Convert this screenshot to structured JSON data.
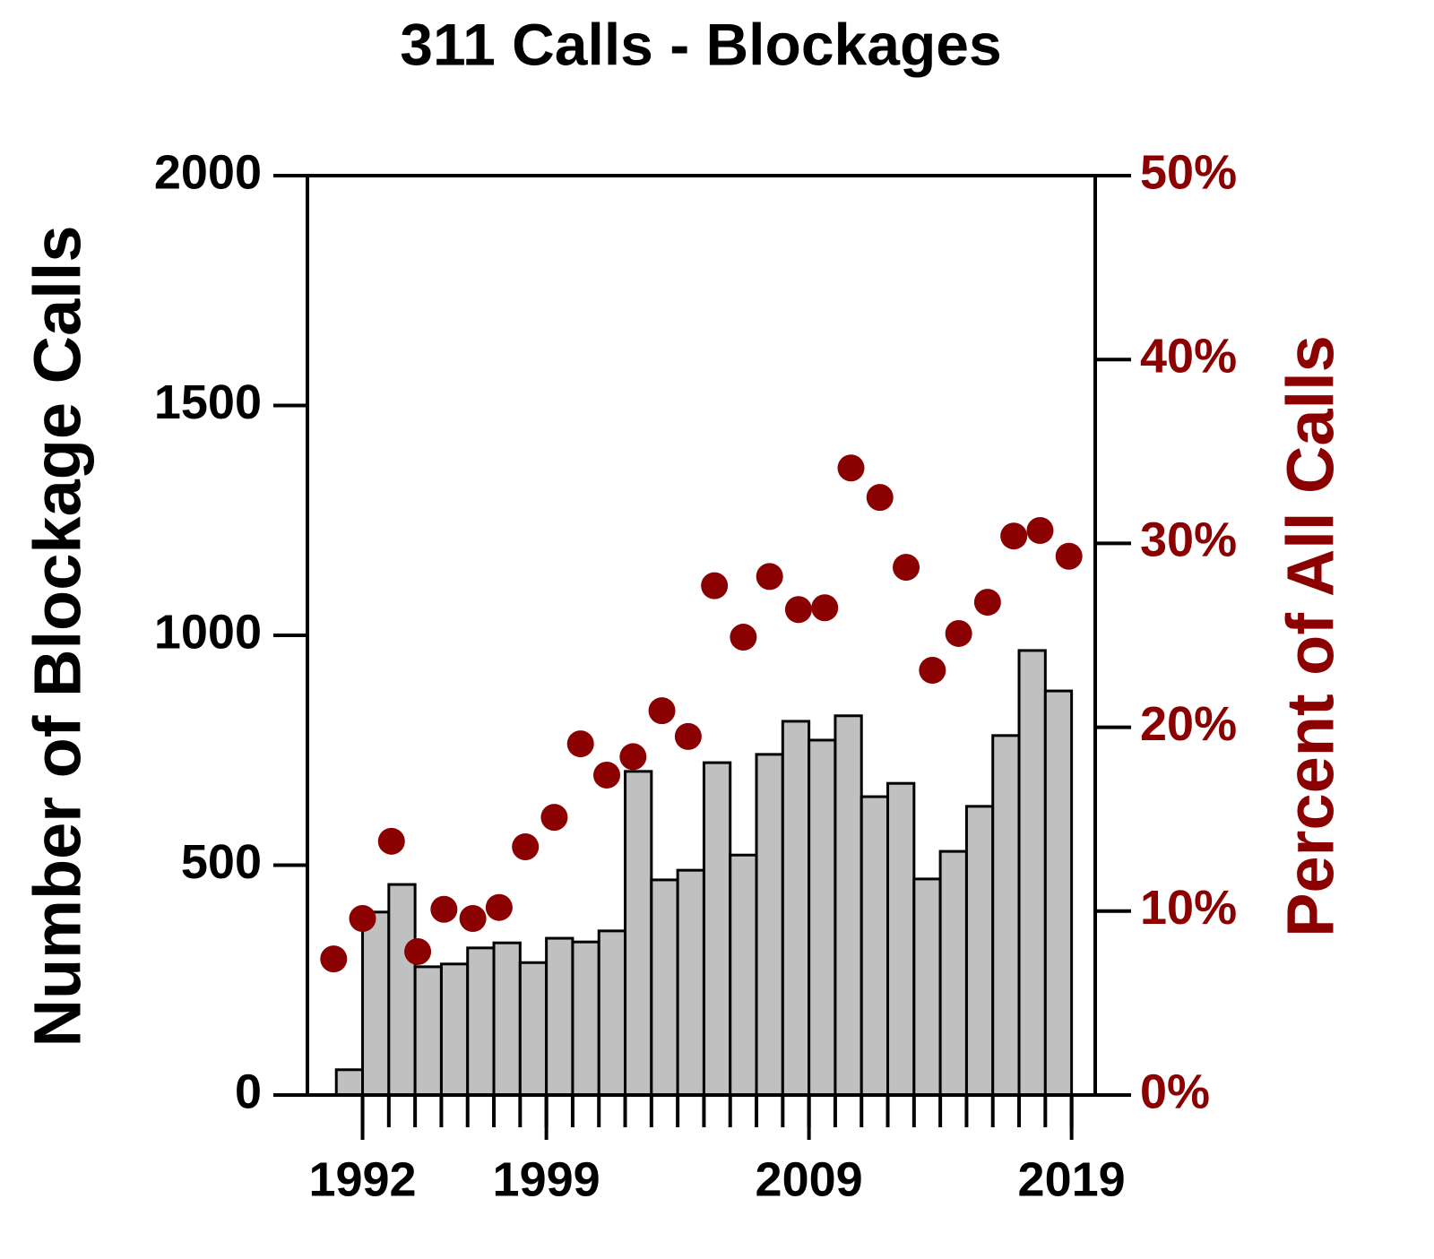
{
  "chart_data": {
    "type": "bar-scatter",
    "title": "311 Calls - Blockages",
    "y_label": "Number of Blockage Calls",
    "y2_label": "Percent of All Calls",
    "xlim": [
      1989.9,
      2019.9
    ],
    "xticks": [
      1992,
      1999,
      2009,
      2019
    ],
    "xminor_ticks": [
      1992,
      1993,
      1994,
      1995,
      1996,
      1997,
      1998,
      1999,
      2000,
      2001,
      2002,
      2003,
      2004,
      2005,
      2006,
      2007,
      2008,
      2009,
      2010,
      2011,
      2012,
      2013,
      2014,
      2015,
      2016,
      2017,
      2018,
      2019
    ],
    "ylim": [
      0,
      2000
    ],
    "yticks": [
      0,
      500,
      1000,
      1500,
      2000
    ],
    "y2lim": [
      0,
      50
    ],
    "y2ticks": [
      {
        "value": 0,
        "label": "0%"
      },
      {
        "value": 10,
        "label": "10%"
      },
      {
        "value": 20,
        "label": "20%"
      },
      {
        "value": 30,
        "label": "30%"
      },
      {
        "value": 40,
        "label": "40%"
      },
      {
        "value": 50,
        "label": "50%"
      }
    ],
    "series": [
      {
        "type": "bar",
        "color": "#c0c0c0",
        "x": [
          1991,
          1992,
          1993,
          1994,
          1995,
          1996,
          1997,
          1998,
          1999,
          2000,
          2001,
          2002,
          2003,
          2004,
          2005,
          2006,
          2007,
          2008,
          2009,
          2010,
          2011,
          2012,
          2013,
          2014,
          2015,
          2016,
          2017,
          2018
        ],
        "values": [
          55,
          398,
          458,
          279,
          285,
          320,
          331,
          288,
          341,
          333,
          357,
          704,
          468,
          489,
          723,
          522,
          741,
          813,
          772,
          825,
          649,
          678,
          470,
          530,
          628,
          782,
          967,
          879
        ]
      },
      {
        "type": "scatter",
        "axis": "y2",
        "color": "#8b0000",
        "x": [
          1990.9,
          1992.0,
          1993.1,
          1994.1,
          1995.1,
          1996.2,
          1997.2,
          1998.2,
          1999.3,
          2000.3,
          2001.3,
          2002.3,
          2003.4,
          2004.4,
          2005.4,
          2006.5,
          2007.5,
          2008.6,
          2009.6,
          2010.6,
          2011.7,
          2012.7,
          2013.7,
          2014.7,
          2015.8,
          2016.8,
          2017.8,
          2018.9
        ],
        "values": [
          7.4,
          9.6,
          13.8,
          7.8,
          10.1,
          9.6,
          10.2,
          13.5,
          15.1,
          19.1,
          17.4,
          18.4,
          20.9,
          19.5,
          27.7,
          24.9,
          28.2,
          26.4,
          26.5,
          34.1,
          32.5,
          28.7,
          23.1,
          25.1,
          26.8,
          30.4,
          30.7,
          29.3
        ]
      }
    ]
  }
}
